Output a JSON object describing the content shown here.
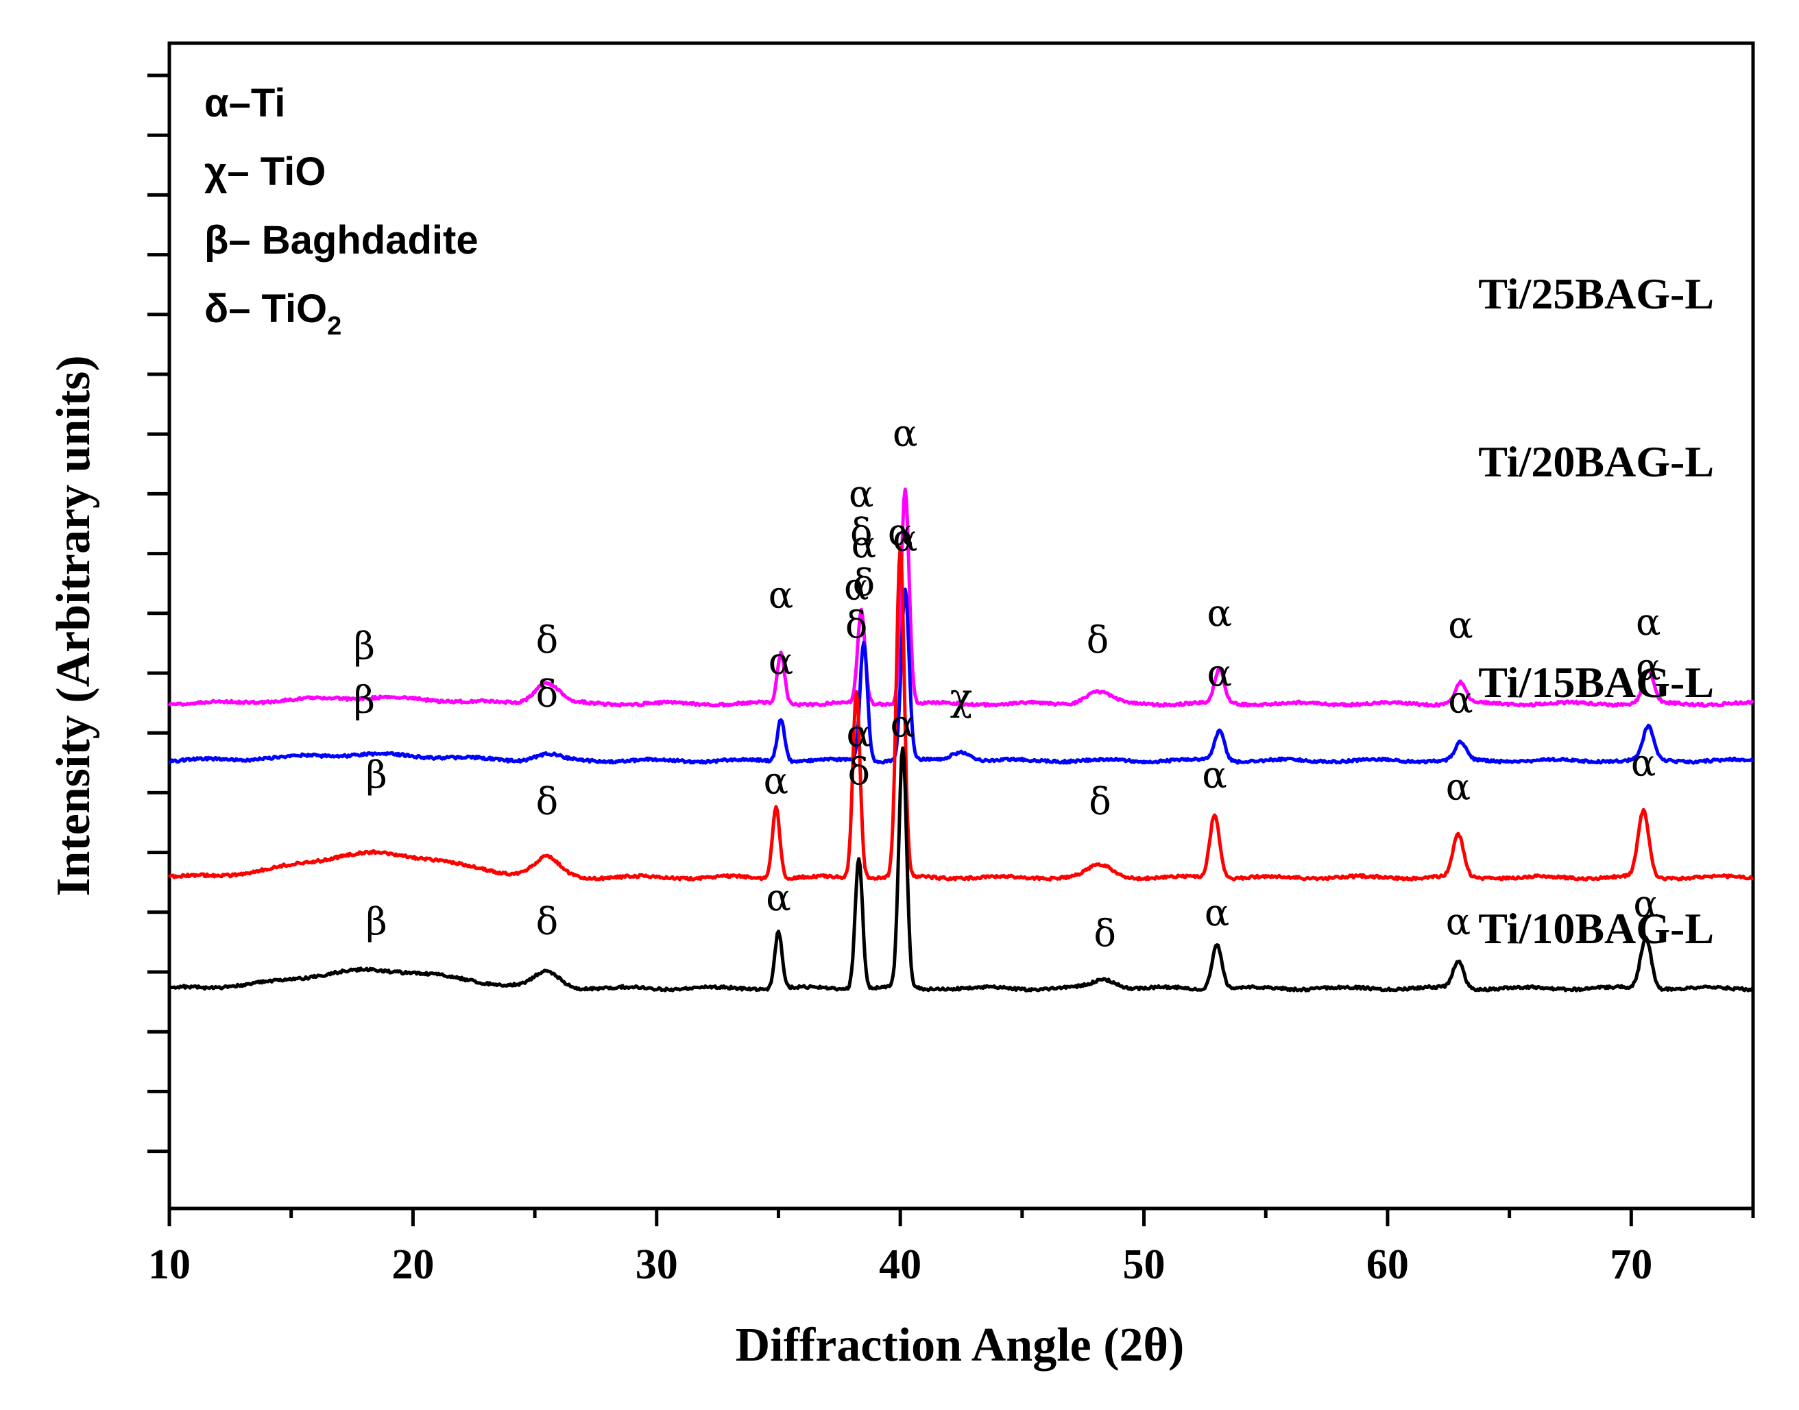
{
  "chart_data": {
    "type": "line",
    "xlabel": "Diffraction Angle (2θ)",
    "ylabel": "Intensity (Arbitrary units)",
    "xlim": [
      10,
      75
    ],
    "xticks": [
      10,
      20,
      30,
      40,
      50,
      60,
      70
    ],
    "grid": false,
    "legend_position": "top-left",
    "legend": [
      {
        "symbol": "α",
        "text": "Ti",
        "sub": ""
      },
      {
        "symbol": "χ",
        "text": " TiO",
        "sub": ""
      },
      {
        "symbol": "β",
        "text": " Baghdadite",
        "sub": ""
      },
      {
        "symbol": "δ",
        "text": " TiO",
        "sub": "2"
      }
    ],
    "series": [
      {
        "name": "Ti/25BAG-L",
        "color": "#ff00ff",
        "baseline": 0.58,
        "peaks": [
          {
            "x": 18.0,
            "h": 0.02,
            "w": 3.0,
            "label": "β",
            "label_h": 0.15
          },
          {
            "x": 25.5,
            "h": 0.07,
            "w": 0.5,
            "label": "δ",
            "label_h": 0.17
          },
          {
            "x": 35.1,
            "h": 0.17,
            "w": 0.15,
            "label": "α",
            "label_h": 0.32
          },
          {
            "x": 38.4,
            "h": 0.31,
            "w": 0.15,
            "label": "α\nδ",
            "label_h": 0.53
          },
          {
            "x": 40.2,
            "h": 0.72,
            "w": 0.16,
            "label": "α",
            "label_h": 0.86
          },
          {
            "x": 48.1,
            "h": 0.04,
            "w": 0.5,
            "label": "δ",
            "label_h": 0.17
          },
          {
            "x": 53.1,
            "h": 0.11,
            "w": 0.2,
            "label": "α",
            "label_h": 0.26
          },
          {
            "x": 63.0,
            "h": 0.07,
            "w": 0.22,
            "label": "α",
            "label_h": 0.22
          },
          {
            "x": 70.7,
            "h": 0.11,
            "w": 0.22,
            "label": "α",
            "label_h": 0.23
          }
        ]
      },
      {
        "name": "Ti/20BAG-L",
        "color": "#0000ff",
        "baseline": 0.39,
        "peaks": [
          {
            "x": 18.0,
            "h": 0.02,
            "w": 3.0,
            "label": "β",
            "label_h": 0.16
          },
          {
            "x": 25.5,
            "h": 0.02,
            "w": 0.5,
            "label": "δ",
            "label_h": 0.18
          },
          {
            "x": 35.1,
            "h": 0.14,
            "w": 0.15,
            "label": "α",
            "label_h": 0.29
          },
          {
            "x": 38.5,
            "h": 0.4,
            "w": 0.15,
            "label": "α\nδ",
            "label_h": 0.55
          },
          {
            "x": 40.2,
            "h": 0.57,
            "w": 0.16,
            "label": "α",
            "label_h": 0.7
          },
          {
            "x": 42.5,
            "h": 0.03,
            "w": 0.4,
            "label": "χ",
            "label_h": 0.17
          },
          {
            "x": 53.1,
            "h": 0.1,
            "w": 0.2,
            "label": "α",
            "label_h": 0.25
          },
          {
            "x": 63.0,
            "h": 0.06,
            "w": 0.22,
            "label": "α",
            "label_h": 0.16
          },
          {
            "x": 70.7,
            "h": 0.11,
            "w": 0.22,
            "label": "α",
            "label_h": 0.27
          }
        ]
      },
      {
        "name": "Ti/15BAG-L",
        "color": "#ff0000",
        "baseline": 0.0,
        "peaks": [
          {
            "x": 18.5,
            "h": 0.08,
            "w": 3.0,
            "label": "β",
            "label_h": 0.3
          },
          {
            "x": 25.5,
            "h": 0.06,
            "w": 0.5,
            "label": "δ",
            "label_h": 0.21
          },
          {
            "x": 34.9,
            "h": 0.24,
            "w": 0.15,
            "label": "α",
            "label_h": 0.28
          },
          {
            "x": 38.2,
            "h": 0.62,
            "w": 0.15,
            "label": "α\nδ",
            "label_h": 0.8
          },
          {
            "x": 40.0,
            "h": 1.1,
            "w": 0.16,
            "label": "α",
            "label_h": 1.11
          },
          {
            "x": 48.2,
            "h": 0.04,
            "w": 0.5,
            "label": "δ",
            "label_h": 0.21
          },
          {
            "x": 52.9,
            "h": 0.21,
            "w": 0.2,
            "label": "α",
            "label_h": 0.3
          },
          {
            "x": 62.9,
            "h": 0.14,
            "w": 0.22,
            "label": "α",
            "label_h": 0.26
          },
          {
            "x": 70.5,
            "h": 0.22,
            "w": 0.22,
            "label": "α",
            "label_h": 0.34
          }
        ]
      },
      {
        "name": "Ti/10BAG-L",
        "color": "#000000",
        "baseline": -0.37,
        "peaks": [
          {
            "x": 18.5,
            "h": 0.06,
            "w": 3.0,
            "label": "β",
            "label_h": 0.18
          },
          {
            "x": 25.5,
            "h": 0.05,
            "w": 0.5,
            "label": "δ",
            "label_h": 0.18
          },
          {
            "x": 35.0,
            "h": 0.19,
            "w": 0.15,
            "label": "α",
            "label_h": 0.26
          },
          {
            "x": 38.3,
            "h": 0.44,
            "w": 0.15,
            "label": "α\nδ",
            "label_h": 0.68
          },
          {
            "x": 40.1,
            "h": 0.8,
            "w": 0.16,
            "label": "α",
            "label_h": 0.84
          },
          {
            "x": 48.4,
            "h": 0.03,
            "w": 0.5,
            "label": "δ",
            "label_h": 0.14
          },
          {
            "x": 53.0,
            "h": 0.15,
            "w": 0.2,
            "label": "α",
            "label_h": 0.21
          },
          {
            "x": 62.9,
            "h": 0.09,
            "w": 0.22,
            "label": "α",
            "label_h": 0.18
          },
          {
            "x": 70.6,
            "h": 0.17,
            "w": 0.22,
            "label": "α",
            "label_h": 0.24
          }
        ]
      }
    ]
  }
}
